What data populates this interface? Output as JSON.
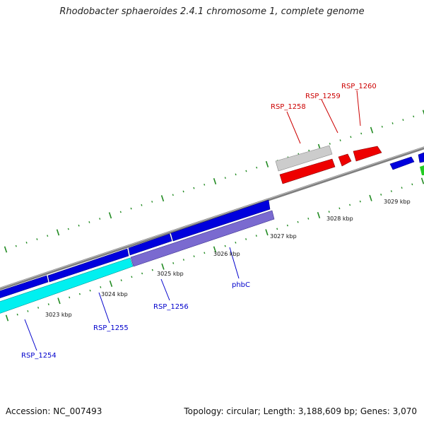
{
  "title": "Rhodobacter sphaeroides 2.4.1 chromosome 1, complete genome",
  "footer": {
    "accession": "Accession: NC_007493",
    "summary": "Topology: circular; Length: 3,188,609 bp; Genes: 3,070"
  },
  "ticks": [
    {
      "label": "3023 kbp"
    },
    {
      "label": "3024 kbp"
    },
    {
      "label": "3025 kbp"
    },
    {
      "label": "3026 kbp"
    },
    {
      "label": "3027 kbp"
    },
    {
      "label": "3028 kbp"
    },
    {
      "label": "3029 kbp"
    }
  ],
  "genes": [
    {
      "label": "RSP_1254",
      "color": "#0000cc"
    },
    {
      "label": "RSP_1255",
      "color": "#0000cc"
    },
    {
      "label": "RSP_1256",
      "color": "#0000cc"
    },
    {
      "label": "phbC",
      "color": "#0000cc"
    },
    {
      "label": "RSP_1258",
      "color": "#cc0000"
    },
    {
      "label": "RSP_1259",
      "color": "#cc0000"
    },
    {
      "label": "RSP_1260",
      "color": "#cc0000"
    }
  ],
  "colors": {
    "forward_gene": "#0000e0",
    "reverse_gene": "#ee0000",
    "cds_cyan": "#00ffff",
    "cds_purple": "#7766cc",
    "pseudo_gray": "#c8c8c8",
    "rna_green": "#22cc22",
    "backbone": "#808080",
    "tick_green": "#228b22"
  }
}
